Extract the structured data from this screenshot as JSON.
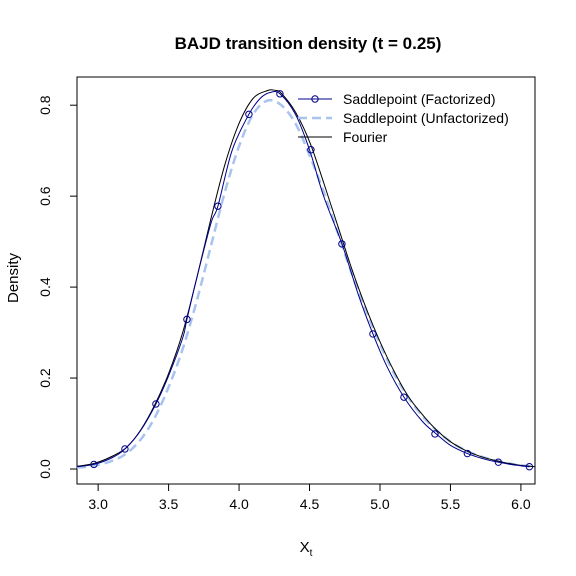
{
  "chart_data": {
    "type": "line",
    "title": "BAJD transition density (t = 0.25)",
    "xlabel": {
      "base": "X",
      "subscript": "t"
    },
    "ylabel": "Density",
    "xlim": [
      2.85,
      6.1
    ],
    "ylim": [
      -0.033,
      0.862
    ],
    "x_ticks": [
      3.0,
      3.5,
      4.0,
      4.5,
      5.0,
      5.5,
      6.0
    ],
    "x_tick_labels": [
      "3.0",
      "3.5",
      "4.0",
      "4.5",
      "5.0",
      "5.5",
      "6.0"
    ],
    "y_ticks": [
      0.0,
      0.2,
      0.4,
      0.6,
      0.8
    ],
    "y_tick_labels": [
      "0.0",
      "0.2",
      "0.4",
      "0.6",
      "0.8"
    ],
    "grid": false,
    "legend_position": "top-right",
    "colors": {
      "factorized": "#00008b",
      "unfactorized": "#a8c4ee",
      "fourier": "#000000"
    },
    "series": [
      {
        "name": "Saddlepoint (Factorized)",
        "style": "solid-line-with-circle-markers",
        "x": [
          2.85,
          2.97,
          3.1,
          3.19,
          3.3,
          3.41,
          3.5,
          3.6,
          3.63,
          3.7,
          3.8,
          3.85,
          3.95,
          4.07,
          4.15,
          4.22,
          4.29,
          4.4,
          4.5,
          4.6,
          4.73,
          4.85,
          4.95,
          5.05,
          5.17,
          5.3,
          5.4,
          5.5,
          5.62,
          5.75,
          5.84,
          5.95,
          6.06
        ],
        "y": [
          0.005,
          0.01,
          0.025,
          0.044,
          0.084,
          0.143,
          0.205,
          0.288,
          0.329,
          0.42,
          0.54,
          0.578,
          0.7,
          0.78,
          0.815,
          0.828,
          0.825,
          0.78,
          0.702,
          0.6,
          0.495,
          0.38,
          0.297,
          0.225,
          0.158,
          0.105,
          0.077,
          0.052,
          0.034,
          0.021,
          0.015,
          0.009,
          0.005
        ],
        "markers_x": [
          2.97,
          3.19,
          3.41,
          3.63,
          3.85,
          4.07,
          4.29,
          4.51,
          4.73,
          4.95,
          5.17,
          5.39,
          5.62,
          5.84,
          6.06
        ],
        "markers_y": [
          0.01,
          0.044,
          0.143,
          0.329,
          0.578,
          0.78,
          0.825,
          0.702,
          0.495,
          0.297,
          0.158,
          0.077,
          0.034,
          0.015,
          0.005
        ]
      },
      {
        "name": "Saddlepoint (Unfactorized)",
        "style": "dashed-line",
        "x": [
          2.85,
          2.97,
          3.1,
          3.2,
          3.3,
          3.4,
          3.5,
          3.6,
          3.7,
          3.8,
          3.9,
          4.0,
          4.1,
          4.2,
          4.3,
          4.4,
          4.5,
          4.6,
          4.7,
          4.8,
          4.9,
          5.0,
          5.1,
          5.2,
          5.3,
          5.4,
          5.5,
          5.6,
          5.7,
          5.8,
          5.9,
          6.0,
          6.1
        ],
        "y": [
          0.003,
          0.007,
          0.018,
          0.034,
          0.064,
          0.112,
          0.18,
          0.264,
          0.37,
          0.49,
          0.61,
          0.71,
          0.78,
          0.81,
          0.8,
          0.76,
          0.69,
          0.61,
          0.52,
          0.43,
          0.35,
          0.275,
          0.21,
          0.158,
          0.117,
          0.085,
          0.06,
          0.042,
          0.029,
          0.02,
          0.013,
          0.008,
          0.005
        ]
      },
      {
        "name": "Fourier",
        "style": "solid-line",
        "x": [
          2.85,
          2.97,
          3.1,
          3.2,
          3.3,
          3.4,
          3.5,
          3.6,
          3.7,
          3.8,
          3.9,
          4.0,
          4.1,
          4.2,
          4.25,
          4.3,
          4.4,
          4.5,
          4.6,
          4.7,
          4.8,
          4.9,
          5.0,
          5.1,
          5.2,
          5.3,
          5.4,
          5.5,
          5.6,
          5.7,
          5.8,
          5.9,
          6.0,
          6.1
        ],
        "y": [
          0.006,
          0.012,
          0.028,
          0.047,
          0.085,
          0.14,
          0.21,
          0.3,
          0.42,
          0.55,
          0.67,
          0.76,
          0.815,
          0.832,
          0.833,
          0.826,
          0.785,
          0.72,
          0.63,
          0.535,
          0.44,
          0.355,
          0.28,
          0.215,
          0.16,
          0.12,
          0.086,
          0.06,
          0.042,
          0.029,
          0.02,
          0.013,
          0.008,
          0.005
        ]
      }
    ]
  }
}
